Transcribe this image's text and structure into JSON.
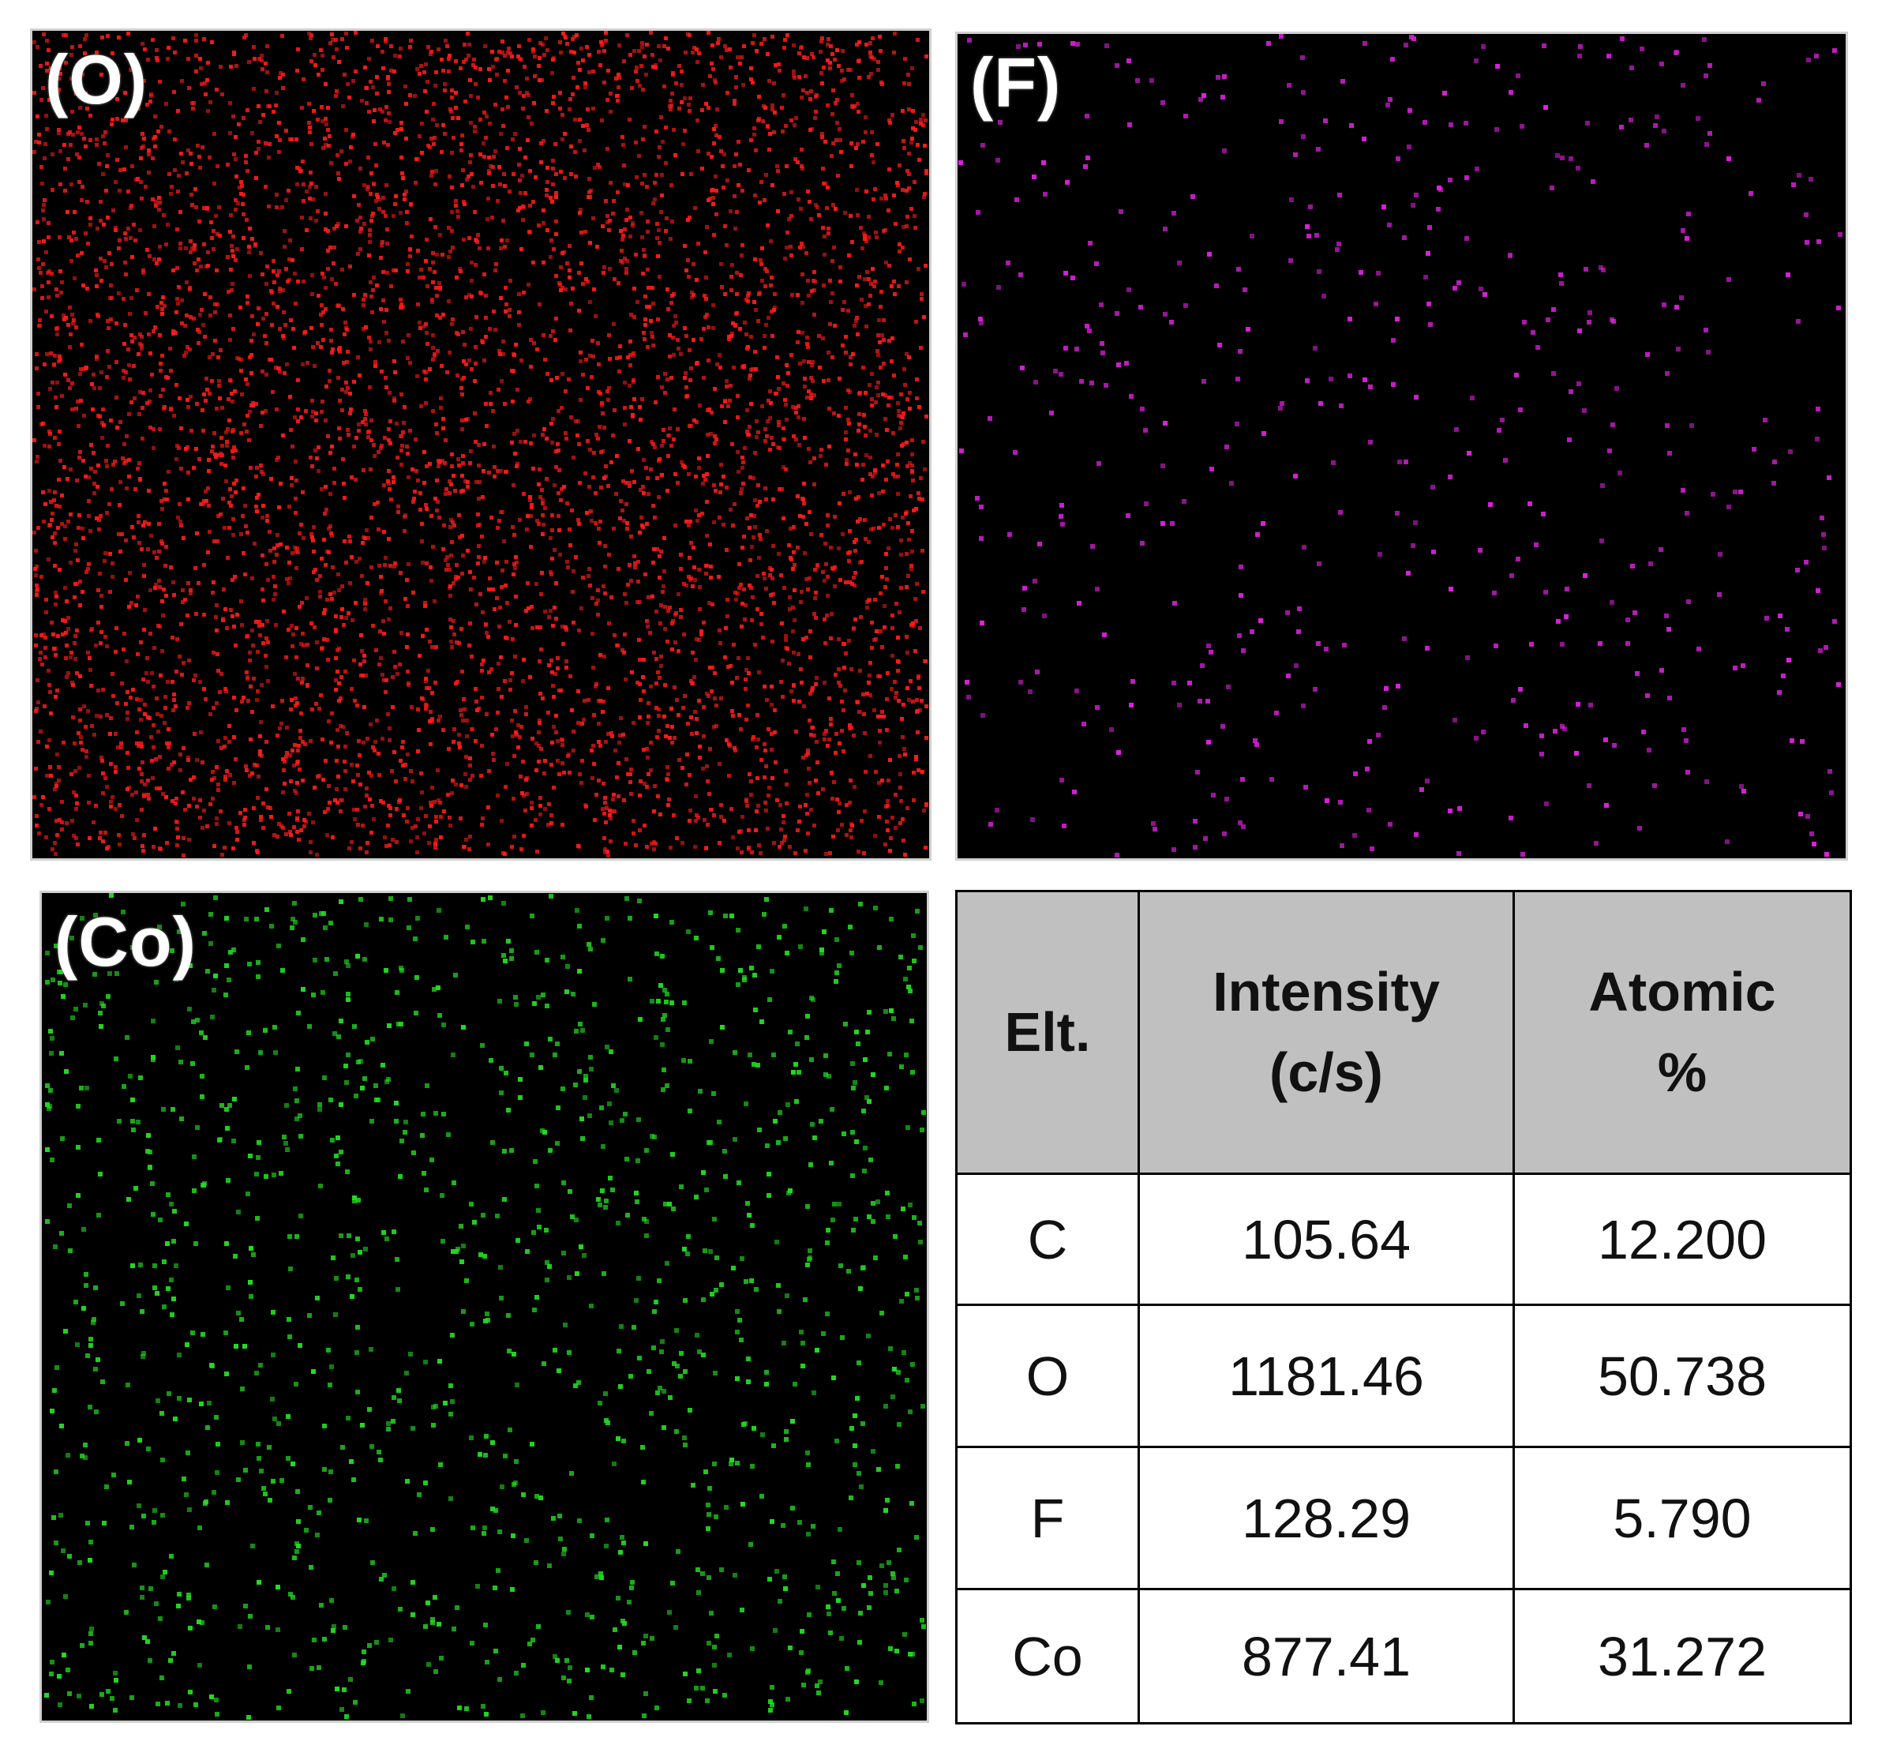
{
  "panels": [
    {
      "label": "(O)",
      "element": "O",
      "color": "#ff1a1a",
      "density": "high"
    },
    {
      "label": "(F)",
      "element": "F",
      "color": "#e020e0",
      "density": "low"
    },
    {
      "label": "(Co)",
      "element": "Co",
      "color": "#22dd22",
      "density": "medium"
    }
  ],
  "table": {
    "headers": [
      {
        "lines": [
          "Elt."
        ]
      },
      {
        "lines": [
          "Intensity",
          "(c/s)"
        ]
      },
      {
        "lines": [
          "Atomic",
          "%"
        ]
      }
    ],
    "rows": [
      {
        "element": "C",
        "intensity": "105.64",
        "atomic": "12.200"
      },
      {
        "element": "O",
        "intensity": "1181.46",
        "atomic": "50.738"
      },
      {
        "element": "F",
        "intensity": "128.29",
        "atomic": "5.790"
      },
      {
        "element": "Co",
        "intensity": "877.41",
        "atomic": "31.272"
      }
    ],
    "header_background": "#c0c0c0"
  }
}
